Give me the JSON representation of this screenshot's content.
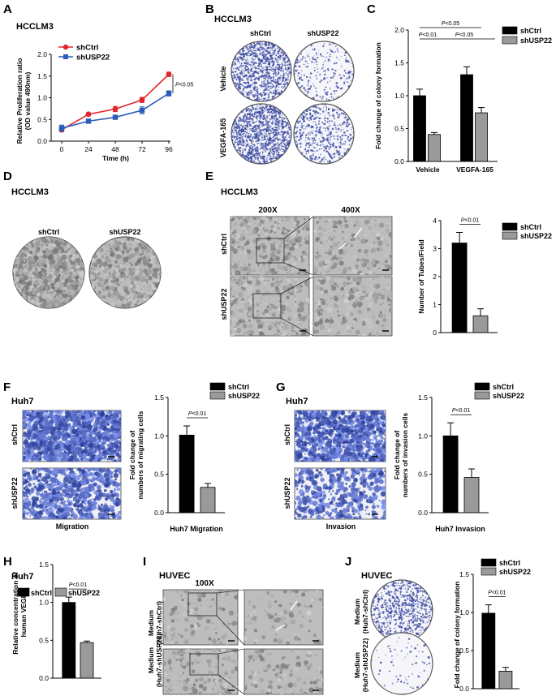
{
  "figure": {
    "panels": [
      {
        "letter": "A",
        "cell": "HCCLM3"
      },
      {
        "letter": "B",
        "cell": "HCCLM3",
        "cols": [
          "shCtrl",
          "shUSP22"
        ],
        "rows": [
          "Vehicle",
          "VEGFA-165"
        ]
      },
      {
        "letter": "C"
      },
      {
        "letter": "D",
        "cell": "HCCLM3",
        "cols": [
          "shCtrl",
          "shUSP22"
        ]
      },
      {
        "letter": "E",
        "cell": "HCCLM3",
        "cols": [
          "200X",
          "400X"
        ],
        "rows": [
          "shCtrl",
          "shUSP22"
        ]
      },
      {
        "letter": "F",
        "cell": "Huh7",
        "rows": [
          "shCtrl",
          "shUSP22"
        ],
        "caption": "Migration"
      },
      {
        "letter": "G",
        "cell": "Huh7",
        "rows": [
          "shCtrl",
          "shUSP22"
        ],
        "caption": "Invasion"
      },
      {
        "letter": "H",
        "cell": "Huh7"
      },
      {
        "letter": "I",
        "cell": "HUVEC",
        "mag": "100X",
        "rows": [
          "Medium\n(Huh7-shCtrl)",
          "Medium\n(Huh7-shUSP22)"
        ]
      },
      {
        "letter": "J",
        "cell": "HUVEC",
        "rows": [
          "Medium\n(Huh7-shCtrl)",
          "Medium\n(Huh7-shUSP22)"
        ]
      }
    ]
  },
  "colors": {
    "shCtrl": "#000000",
    "shUSP22": "#9a9a9a",
    "lineCtrl": "#e0262a",
    "lineUSP": "#2a5cb8",
    "stain": "#3a4aa0"
  },
  "chart_data": [
    {
      "id": "A",
      "type": "line",
      "ylabel": "Relative Proliferation ratio\n(OD value 490nm)",
      "xlabel": "Time (h)",
      "x": [
        0,
        24,
        48,
        72,
        96
      ],
      "ylim": [
        0,
        2.0
      ],
      "yticks": [
        "0.0",
        "0.5",
        "1.0",
        "1.5",
        "2.0"
      ],
      "series": [
        {
          "name": "shCtrl",
          "values": [
            0.26,
            0.62,
            0.74,
            0.95,
            1.54
          ],
          "err": [
            0.04,
            0.03,
            0.06,
            0.06,
            0.05
          ]
        },
        {
          "name": "shUSP22",
          "values": [
            0.3,
            0.46,
            0.55,
            0.71,
            1.1
          ],
          "err": [
            0.07,
            0.03,
            0.03,
            0.08,
            0.06
          ]
        }
      ],
      "annotation": "P<0.05"
    },
    {
      "id": "C",
      "type": "bar",
      "ylabel": "Fold change of colony formation",
      "categories": [
        "Vehicle",
        "VEGFA-165"
      ],
      "ylim": [
        0,
        2.0
      ],
      "yticks": [
        "0.0",
        "0.5",
        "1.0",
        "1.5",
        "2.0"
      ],
      "series": [
        {
          "name": "shCtrl",
          "values": [
            1.0,
            1.32
          ],
          "err": [
            0.1,
            0.12
          ]
        },
        {
          "name": "shUSP22",
          "values": [
            0.41,
            0.74
          ],
          "err": [
            0.03,
            0.08
          ]
        }
      ],
      "annotations": [
        "P<0.01",
        "P<0.05",
        "P<0.05"
      ]
    },
    {
      "id": "E",
      "type": "bar",
      "ylabel": "Number of Tubes/Field",
      "categories": [
        "shCtrl",
        "shUSP22"
      ],
      "values": [
        3.2,
        0.6
      ],
      "err": [
        0.38,
        0.25
      ],
      "ylim": [
        0,
        4
      ],
      "yticks": [
        "0",
        "1",
        "2",
        "3",
        "4"
      ],
      "legend": [
        "shCtrl",
        "shUSP22"
      ],
      "annotation": "P<0.01"
    },
    {
      "id": "F",
      "type": "bar",
      "ylabel": "Fold change of\nnumbers of migrating cells",
      "xlabel": "Huh7 Migration",
      "categories": [
        "shCtrl",
        "shUSP22"
      ],
      "values": [
        1.01,
        0.33
      ],
      "err": [
        0.12,
        0.05
      ],
      "ylim": [
        0,
        1.5
      ],
      "yticks": [
        "0.0",
        "0.5",
        "1.0",
        "1.5"
      ],
      "legend": [
        "shCtrl",
        "shUSP22"
      ],
      "annotation": "P<0.01"
    },
    {
      "id": "G",
      "type": "bar",
      "ylabel": "Fold change of\nnumbers of invasion cells",
      "xlabel": "Huh7 Invasion",
      "categories": [
        "shCtrl",
        "shUSP22"
      ],
      "values": [
        1.0,
        0.46
      ],
      "err": [
        0.17,
        0.11
      ],
      "ylim": [
        0,
        1.5
      ],
      "yticks": [
        "0.0",
        "0.5",
        "1.0",
        "1.5"
      ],
      "legend": [
        "shCtrl",
        "shUSP22"
      ],
      "annotation": "P<0.01"
    },
    {
      "id": "H",
      "type": "bar",
      "ylabel": "Relative concentration of\nhuman VEGFA",
      "categories": [
        "shCtrl",
        "shUSP22"
      ],
      "values": [
        1.0,
        0.47
      ],
      "err": [
        0.07,
        0.02
      ],
      "ylim": [
        0,
        1.5
      ],
      "yticks": [
        "0.0",
        "0.5",
        "1.0",
        "1.5"
      ],
      "legend": [
        "shCtrl",
        "shUSP22"
      ],
      "annotation": "P<0.01"
    },
    {
      "id": "J",
      "type": "bar",
      "ylabel": "Fold change of colony formation",
      "categories": [
        "shCtrl",
        "shUSP22"
      ],
      "values": [
        0.99,
        0.23
      ],
      "err": [
        0.11,
        0.05
      ],
      "ylim": [
        0,
        1.5
      ],
      "yticks": [
        "0.0",
        "0.5",
        "1.0",
        "1.5"
      ],
      "legend": [
        "shCtrl",
        "shUSP22"
      ],
      "annotation": "P<0.01"
    }
  ]
}
